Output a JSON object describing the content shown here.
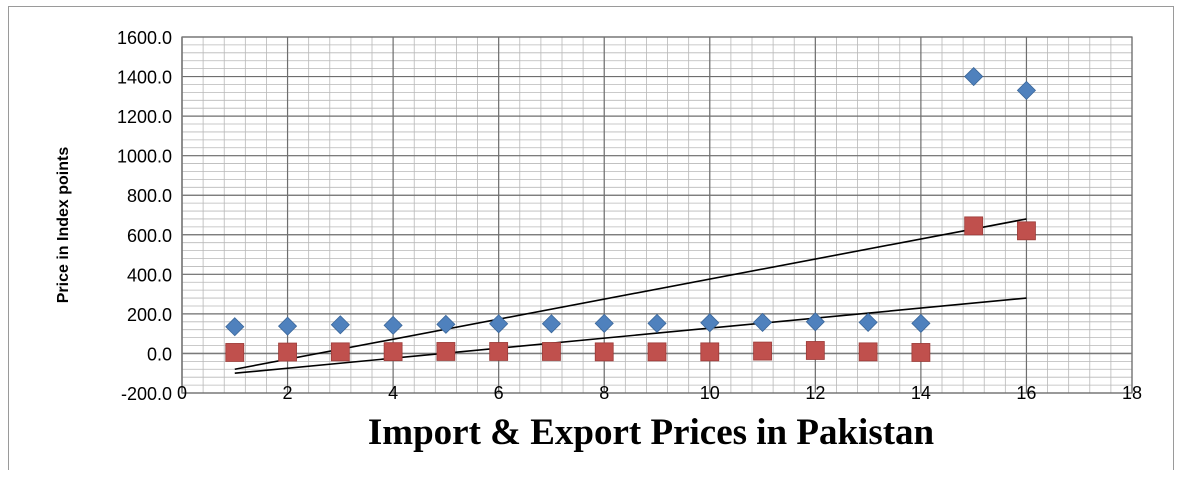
{
  "chart_data": {
    "type": "scatter",
    "title": "",
    "xlabel": "Import & Export Prices in Pakistan",
    "ylabel": "Price in Index points",
    "xlim": [
      0,
      18
    ],
    "ylim": [
      -200,
      1600
    ],
    "x_ticks": [
      "0",
      "2",
      "4",
      "6",
      "8",
      "10",
      "12",
      "14",
      "16",
      "18"
    ],
    "y_ticks": [
      "-200.0",
      "0.0",
      "200.0",
      "400.0",
      "600.0",
      "800.0",
      "1000.0",
      "1200.0",
      "1400.0",
      "1600.0"
    ],
    "grid": true,
    "legend": "none",
    "series": [
      {
        "marker": "diamond",
        "color": "#4f81bd",
        "x": [
          1,
          2,
          3,
          4,
          5,
          6,
          7,
          8,
          9,
          10,
          11,
          12,
          13,
          14,
          15,
          16
        ],
        "values": [
          135,
          138,
          145,
          142,
          147,
          150,
          150,
          152,
          152,
          155,
          157,
          160,
          157,
          152,
          1400,
          1330
        ]
      },
      {
        "marker": "square",
        "color": "#c0504d",
        "x": [
          1,
          2,
          3,
          4,
          5,
          6,
          7,
          8,
          9,
          10,
          11,
          12,
          13,
          14,
          15,
          16
        ],
        "values": [
          5,
          7,
          8,
          9,
          10,
          10,
          10,
          8,
          8,
          8,
          12,
          15,
          8,
          5,
          645,
          620
        ]
      }
    ],
    "trendlines": [
      {
        "color": "#000000",
        "x": [
          1,
          16
        ],
        "y": [
          -80,
          680
        ]
      },
      {
        "color": "#000000",
        "x": [
          1,
          16
        ],
        "y": [
          -100,
          280
        ]
      }
    ]
  }
}
